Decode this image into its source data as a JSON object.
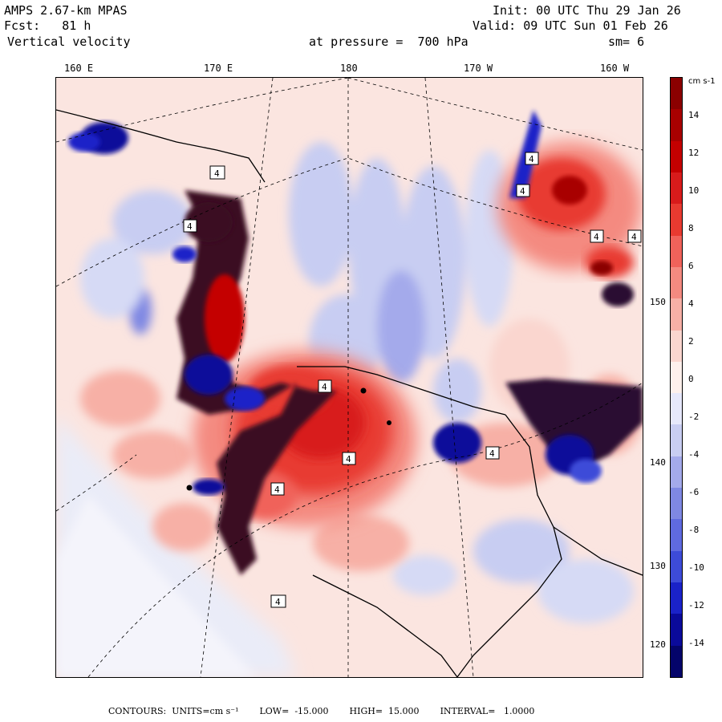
{
  "header": {
    "model": "AMPS 2.67-km MPAS",
    "forecast": "Fcst:   81 h",
    "field": "Vertical velocity",
    "init": "Init: 00 UTC Thu 29 Jan 26",
    "valid": "Valid: 09 UTC Sun 01 Feb 26",
    "pressure": "at pressure =  700 hPa",
    "smoothing": "sm= 6"
  },
  "map": {
    "longitude_labels": [
      "160 E",
      "170 E",
      "180",
      "170 W",
      "160 W"
    ],
    "latitude_labels": [
      "150 W",
      "140 W",
      "130 W",
      "120 W"
    ],
    "contour_labels": [
      "4",
      "4",
      "4",
      "4",
      "4",
      "4",
      "4",
      "4",
      "4",
      "4",
      "4"
    ],
    "colors": {
      "positive_dark": "#8b0000",
      "positive_mid": "#e8443a",
      "positive_light": "#f7b4a6",
      "neutral": "#fbe5e0",
      "negative_light": "#c8cdf2",
      "negative_mid": "#5f6ae0",
      "negative_dark": "#0a0a9a"
    }
  },
  "colorbar": {
    "units": "cm s-1",
    "ticks": [
      "14",
      "12",
      "10",
      "8",
      "6",
      "4",
      "2",
      "0",
      "-2",
      "-4",
      "-6",
      "-8",
      "-10",
      "-12",
      "-14"
    ],
    "colors": [
      "#8b0000",
      "#a80000",
      "#c40000",
      "#d81b1b",
      "#e83a30",
      "#f0625a",
      "#f48a80",
      "#f7b0a6",
      "#fad6cf",
      "#fdf0ec",
      "#e6e8fb",
      "#c8cdf2",
      "#a4aaeb",
      "#7f88e3",
      "#5f6ae0",
      "#3d4bd8",
      "#1a22c8",
      "#0a0a9a",
      "#04046a"
    ]
  },
  "footer": {
    "contours": "CONTOURS:  UNITS=cm s⁻¹",
    "low": "LOW=  -15.000",
    "high": "HIGH=  15.000",
    "interval": "INTERVAL=   1.0000"
  }
}
